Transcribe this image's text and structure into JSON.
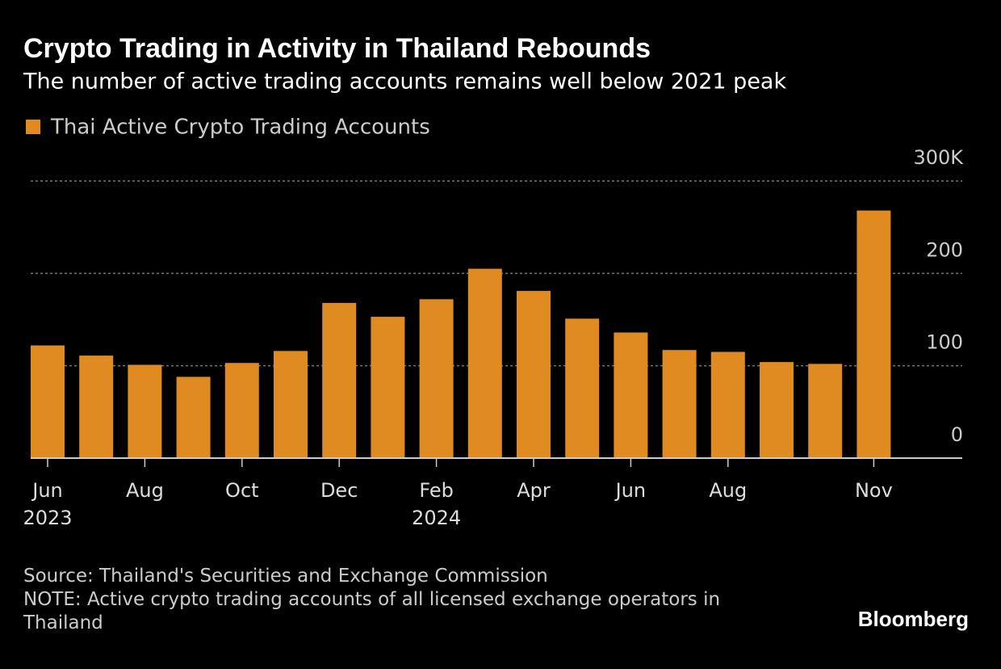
{
  "chart_data": {
    "type": "bar",
    "title": "Crypto Trading in Activity in Thailand Rebounds",
    "subtitle": "The number of active trading accounts remains well below 2021 peak",
    "categories": [
      "Jun\n2023",
      null,
      "Aug",
      null,
      "Oct",
      null,
      "Dec",
      null,
      "Feb\n2024",
      null,
      "Apr",
      null,
      "Jun",
      null,
      "Aug",
      null,
      null,
      "Nov"
    ],
    "series": [
      {
        "name": "Thai Active Crypto Trading Accounts",
        "color": "#e08a22",
        "values": [
          122,
          111,
          101,
          88,
          103,
          116,
          168,
          153,
          172,
          205,
          181,
          151,
          136,
          117,
          115,
          104,
          102,
          268
        ]
      }
    ],
    "ylim": [
      0,
      300
    ],
    "yticks": [
      0,
      100,
      200,
      {
        "value": 300,
        "label": "300K"
      }
    ],
    "grid": true,
    "source": "Source: Thailand's Securities and Exchange Commission",
    "note": "NOTE: Active crypto trading accounts of all licensed exchange operators in Thailand",
    "brand": "Bloomberg"
  }
}
